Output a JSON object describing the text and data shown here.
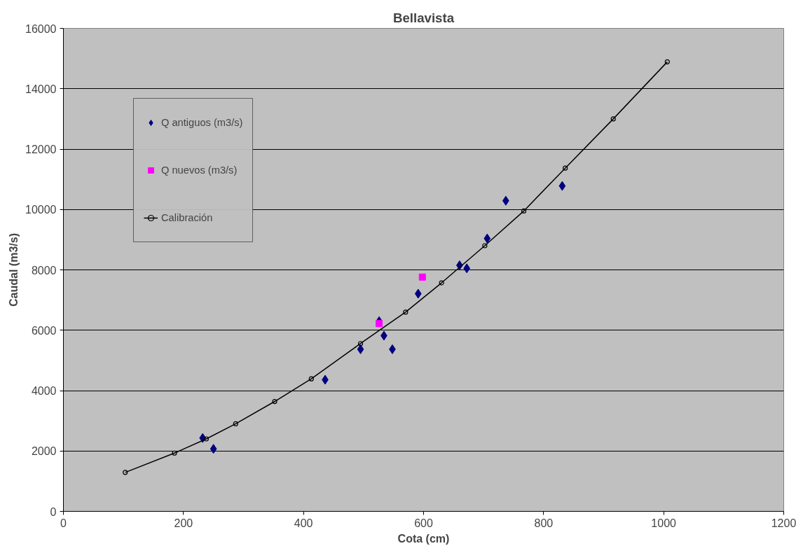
{
  "chart_data": {
    "type": "scatter",
    "title": "Bellavista",
    "xlabel": "Cota (cm)",
    "ylabel": "Caudal (m3/s)",
    "xlim": [
      0,
      1200
    ],
    "xticks": [
      0,
      200,
      400,
      600,
      800,
      1000,
      1200
    ],
    "ylim": [
      0,
      16000
    ],
    "yticks": [
      0,
      2000,
      4000,
      6000,
      8000,
      10000,
      12000,
      14000,
      16000
    ],
    "grid": "y",
    "legend": "top left",
    "series": [
      {
        "name": "Q antiguos (m3/s)",
        "marker": "diamond",
        "color": "#000080",
        "x": [
          232,
          250,
          436,
          495,
          526,
          534,
          548,
          591,
          660,
          672,
          706,
          737,
          831
        ],
        "values": [
          2430,
          2070,
          4360,
          5370,
          6300,
          5820,
          5370,
          7210,
          8150,
          8050,
          9040,
          10290,
          10780
        ]
      },
      {
        "name": "Q nuevos (m3/s)",
        "marker": "square",
        "color": "#ff00ff",
        "x": [
          526,
          598
        ],
        "values": [
          6220,
          7760
        ]
      },
      {
        "name": "Calibración",
        "type": "line",
        "marker": "circle",
        "line_style": "solid",
        "color": "#000000",
        "x": [
          103,
          185,
          238,
          287,
          352,
          413,
          495,
          570,
          630,
          702,
          767,
          836,
          916,
          1006
        ],
        "values": [
          1290,
          1930,
          2400,
          2900,
          3640,
          4390,
          5560,
          6600,
          7570,
          8800,
          9950,
          11370,
          13000,
          14890
        ]
      }
    ]
  }
}
